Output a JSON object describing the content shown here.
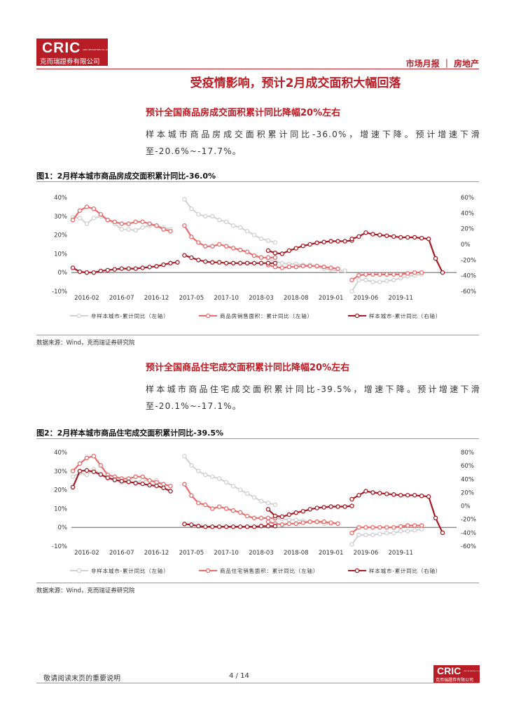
{
  "header": {
    "logo_text": "CRIC",
    "logo_sub": "CRIC SECURITIES CO.,LTD",
    "logo_cn": "克而瑞證券有限公司",
    "category": "市场月报 ｜ 房地产"
  },
  "title": "受疫情影响，预计2月成交面积大幅回落",
  "section1": {
    "subhead": "预计全国商品房成交面积累计同比降幅20%左右",
    "para": "样本城市商品房成交面积累计同比-36.0%，增速下降。预计增速下滑至-20.6%~-17.7%。",
    "fig_title": "图1：2月样本城市商品房成交面积累计同比-36.0%",
    "source": "数据来源：Wind，克而瑞证券研究院"
  },
  "section2": {
    "subhead": "预计全国商品住宅成交面积累计同比降幅20%左右",
    "para": "样本城市商品住宅成交面积累计同比-39.5%，增速下降。预计增速下滑至-20.1%~-17.1%。",
    "fig_title": "图2：2月样本城市商品住宅成交面积累计同比-39.5%",
    "source": "数据来源：Wind，克而瑞证券研究院"
  },
  "chart_data": [
    {
      "type": "line",
      "title": "图1：2月样本城市商品房成交面积累计同比-36.0%",
      "categories": [
        "2016-02",
        "2016-07",
        "2016-12",
        "2017-05",
        "2017-10",
        "2018-03",
        "2018-08",
        "2019-01",
        "2019-06",
        "2019-11"
      ],
      "left_ylim": [
        -10,
        40
      ],
      "left_ticks": [
        "-10%",
        "0%",
        "10%",
        "20%",
        "30%",
        "40%"
      ],
      "right_ylim": [
        -60,
        60
      ],
      "right_ticks": [
        "-60%",
        "-40%",
        "-20%",
        "0%",
        "20%",
        "40%",
        "60%"
      ],
      "series": [
        {
          "name": "非样本城市-累计同比（左轴）",
          "axis": "left",
          "color": "#d0d0d0",
          "color_fill": "#ffffff",
          "segments": [
            {
              "start": 0,
              "values": [
                29.5,
                29,
                26,
                29,
                30,
                28,
                26,
                23,
                23,
                22.5,
                24,
                25,
                25,
                24,
                23
              ]
            },
            {
              "start": 16,
              "values": [
                39,
                34,
                31,
                30,
                30,
                28,
                27,
                25,
                24,
                22,
                20,
                18,
                17,
                16
              ]
            },
            {
              "start": 28,
              "values": [
                7,
                6,
                5,
                4.5,
                4.5,
                4,
                4,
                3,
                2,
                1.5,
                1,
                1
              ]
            },
            {
              "start": 40,
              "values": [
                -10,
                -4,
                -4,
                -5,
                -5,
                -4.5,
                -4,
                -3,
                -2,
                -1.5,
                -1
              ]
            }
          ]
        },
        {
          "name": "商品房销售面积：累计同比（左轴）",
          "axis": "left",
          "color": "#e86a6a",
          "color_fill": "#ffffff",
          "segments": [
            {
              "start": 0,
              "values": [
                28,
                33,
                35,
                34,
                31,
                28,
                27,
                26,
                26,
                27,
                27,
                26,
                25,
                23,
                22
              ]
            },
            {
              "start": 16,
              "values": [
                25,
                19,
                16,
                14,
                14,
                15,
                14,
                13,
                12,
                11,
                9,
                8,
                8,
                8
              ]
            },
            {
              "start": 28,
              "values": [
                4,
                3,
                2.5,
                3,
                3,
                3.5,
                3.5,
                3.5,
                3,
                2.5,
                2
              ]
            },
            {
              "start": 40,
              "values": [
                -4,
                -1.5,
                -1,
                -1,
                -1,
                -1,
                -1,
                -1,
                -0.5,
                0,
                0
              ]
            }
          ]
        },
        {
          "name": "样本城市-累计同比（右轴）",
          "axis": "right",
          "color": "#a31a24",
          "color_fill": "#ffffff",
          "segments": [
            {
              "start": 0,
              "values": [
                -30,
                -35,
                -36,
                -36,
                -34,
                -33,
                -32,
                -31,
                -31,
                -31,
                -30,
                -29,
                -28,
                -26,
                -24,
                -23
              ]
            },
            {
              "start": 16,
              "values": [
                -14,
                -17,
                -20,
                -22,
                -23,
                -23,
                -24,
                -24,
                -24,
                -24,
                -24,
                -24,
                -24,
                -24
              ]
            },
            {
              "start": 28,
              "values": [
                -8,
                -11,
                -12,
                -8,
                -5,
                -2,
                0,
                2,
                3,
                4,
                4,
                4,
                5
              ]
            },
            {
              "start": 40,
              "values": [
                7,
                10,
                15,
                13,
                12,
                11,
                10,
                9,
                9,
                9,
                8,
                7,
                -18,
                -36
              ]
            }
          ]
        }
      ]
    },
    {
      "type": "line",
      "title": "图2：2月样本城市商品住宅成交面积累计同比-39.5%",
      "categories": [
        "2016-02",
        "2016-07",
        "2016-12",
        "2017-05",
        "2017-10",
        "2018-03",
        "2018-08",
        "2019-01",
        "2019-06",
        "2019-11"
      ],
      "left_ylim": [
        -10,
        40
      ],
      "left_ticks": [
        "-10%",
        "0%",
        "10%",
        "20%",
        "30%",
        "40%"
      ],
      "right_ylim": [
        -60,
        80
      ],
      "right_ticks": [
        "-60%",
        "-40%",
        "-20%",
        "0%",
        "20%",
        "40%",
        "60%",
        "80%"
      ],
      "series": [
        {
          "name": "非样本城市-累计同比（左轴）",
          "axis": "left",
          "color": "#d0d0d0",
          "color_fill": "#ffffff",
          "segments": [
            {
              "start": 0,
              "values": [
                27,
                29,
                28,
                31,
                28,
                26,
                25,
                24,
                24,
                24,
                25,
                25,
                25,
                23,
                22
              ]
            },
            {
              "start": 16,
              "values": [
                38,
                33,
                30,
                28,
                27,
                26,
                24,
                22,
                20,
                18,
                16,
                14,
                13,
                12
              ]
            },
            {
              "start": 28,
              "values": [
                5,
                4.5,
                4.5,
                4,
                4,
                3.5,
                3,
                3,
                2,
                2,
                2
              ]
            },
            {
              "start": 40,
              "values": [
                -9,
                -4,
                -4,
                -4,
                -3.5,
                -3,
                -3,
                -2,
                -2,
                -1.5,
                -1
              ]
            }
          ]
        },
        {
          "name": "商品住宅销售面积：累计同比（左轴）",
          "axis": "left",
          "color": "#e86a6a",
          "color_fill": "#ffffff",
          "segments": [
            {
              "start": 0,
              "values": [
                30,
                34,
                37,
                38,
                33,
                28,
                27,
                26,
                26,
                27,
                27,
                25,
                24,
                23,
                22
              ]
            },
            {
              "start": 16,
              "values": [
                23,
                17,
                13,
                12,
                10,
                11,
                10,
                9,
                8,
                6,
                5,
                5,
                5,
                5
              ]
            },
            {
              "start": 28,
              "values": [
                3,
                2,
                1.5,
                2,
                2,
                2.5,
                3,
                3,
                3,
                2.5,
                2
              ]
            },
            {
              "start": 40,
              "values": [
                -3,
                0,
                0,
                0,
                0,
                0,
                0,
                0.5,
                1,
                1,
                1
              ]
            }
          ]
        },
        {
          "name": "样本城市-累计同比（右轴）",
          "axis": "right",
          "color": "#a31a24",
          "color_fill": "#ffffff",
          "segments": [
            {
              "start": 0,
              "values": [
                28,
                52,
                53,
                51,
                47,
                42,
                39,
                37,
                36,
                34,
                33,
                31,
                30,
                27,
                22
              ]
            },
            {
              "start": 16,
              "values": [
                -27,
                -28,
                -30,
                -31,
                -31,
                -31,
                -31,
                -31,
                -31,
                -31,
                -31,
                -30,
                -30,
                -30
              ]
            },
            {
              "start": 28,
              "values": [
                -5,
                -15,
                -16,
                -13,
                -10,
                -8,
                -5,
                -3,
                -2,
                -1,
                -1,
                -1,
                0
              ]
            },
            {
              "start": 40,
              "values": [
                10,
                16,
                22,
                20,
                19,
                18,
                17,
                16,
                16,
                16,
                15,
                14,
                -18,
                -40
              ]
            }
          ]
        }
      ]
    }
  ],
  "footer": {
    "notice": "敬请阅读末页的重要说明",
    "page": "4 / 14",
    "logo_text": "CRIC",
    "logo_cn": "克而瑞證券有限公司",
    "logo_sub": "CRIC SECURITIES CO.,LTD"
  }
}
